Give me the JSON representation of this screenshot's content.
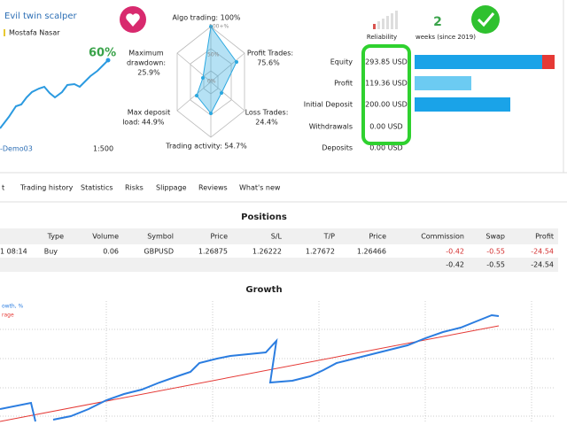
{
  "header": {
    "title": "Evil twin scalper",
    "author": "Mostafa Nasar",
    "growth": "60%",
    "account": "-Demo03",
    "leverage": "1:500"
  },
  "radar": {
    "algo": "Algo trading: 100%",
    "drawdown_label": "Maximum",
    "drawdown_label2": "drawdown:",
    "drawdown": "25.9%",
    "profit_label": "Profit Trades:",
    "profit": "75.6%",
    "loss_label": "Loss Trades:",
    "loss": "24.4%",
    "load_label": "Max deposit",
    "load_label2": "load:",
    "load": "44.9%",
    "activity": "Trading activity: 54.7%",
    "ring_outer": "100+%",
    "ring_mid": "50%",
    "ring_inner": "0%"
  },
  "reliability": "Reliability",
  "weeks": {
    "count": "2",
    "label": "weeks (since 2019)"
  },
  "balances": [
    {
      "label": "Equity",
      "value": "293.85 USD"
    },
    {
      "label": "Profit",
      "value": "119.36 USD"
    },
    {
      "label": "Initial Deposit",
      "value": "200.00 USD"
    },
    {
      "label": "Withdrawals",
      "value": "0.00 USD"
    },
    {
      "label": "Deposits",
      "value": "0.00 USD"
    }
  ],
  "tabs": [
    "t",
    "Trading history",
    "Statistics",
    "Risks",
    "Slippage",
    "Reviews",
    "What's new"
  ],
  "positions": {
    "title": "Positions",
    "columns": [
      "Type",
      "Volume",
      "Symbol",
      "Price",
      "S/L",
      "T/P",
      "Price",
      "Commission",
      "Swap",
      "Profit"
    ],
    "row": [
      "1 08:14",
      "Buy",
      "0.06",
      "GBPUSD",
      "1.26875",
      "1.26222",
      "1.27672",
      "1.26466",
      "-0.42",
      "-0.55",
      "-24.54"
    ],
    "totals": [
      "-0.42",
      "-0.55",
      "-24.54"
    ]
  },
  "growth": {
    "title": "Growth",
    "legend_growth": "owth, %",
    "legend_average": "rage"
  }
}
